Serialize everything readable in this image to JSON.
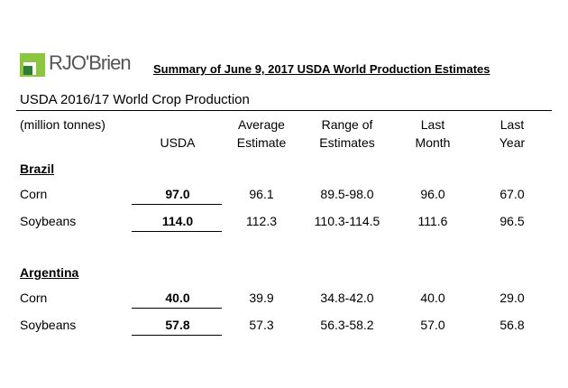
{
  "header": {
    "logo": "RJO'Brien",
    "title": "Summary of June 9, 2017 USDA World Production Estimates"
  },
  "table": {
    "caption": "USDA 2016/17 World Crop Production",
    "unit": "(million tonnes)",
    "columns": [
      [
        "USDA"
      ],
      [
        "Average",
        "Estimate"
      ],
      [
        "Range of",
        "Estimates"
      ],
      [
        "Last",
        "Month"
      ],
      [
        "Last",
        "Year"
      ]
    ],
    "sections": [
      {
        "name": "Brazil",
        "rows": [
          [
            "Corn",
            "97.0",
            "96.1",
            "89.5-98.0",
            "96.0",
            "67.0"
          ],
          [
            "Soybeans",
            "114.0",
            "112.3",
            "110.3-114.5",
            "111.6",
            "96.5"
          ]
        ]
      },
      {
        "name": "Argentina",
        "rows": [
          [
            "Corn",
            "40.0",
            "39.9",
            "34.8-42.0",
            "40.0",
            "29.0"
          ],
          [
            "Soybeans",
            "57.8",
            "57.3",
            "56.3-58.2",
            "57.0",
            "56.8"
          ]
        ]
      }
    ]
  }
}
